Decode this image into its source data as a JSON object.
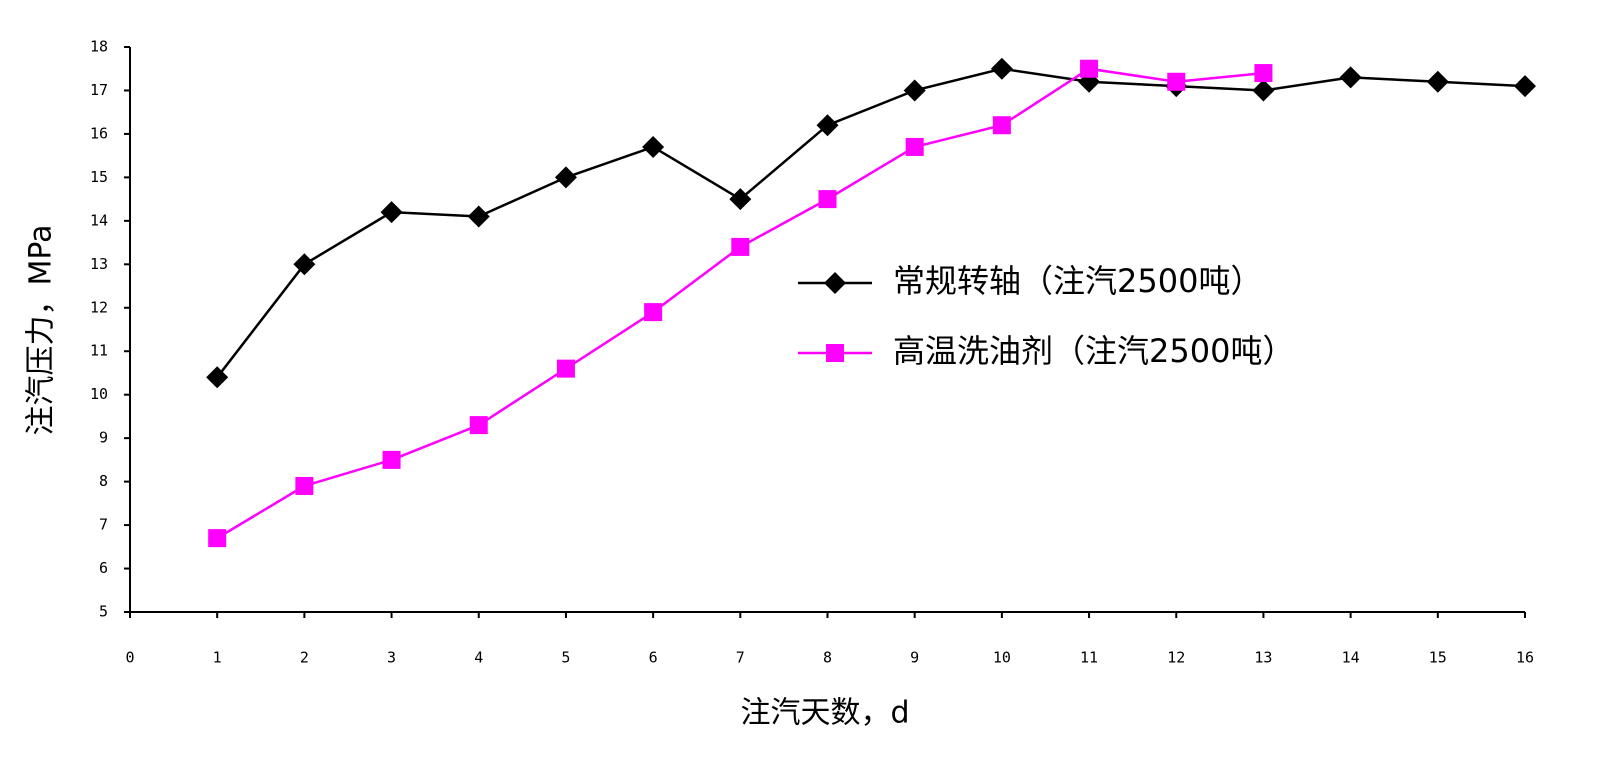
{
  "chart_data": {
    "type": "line",
    "x_label": "注汽天数，d",
    "y_label": "注汽压力，MPa",
    "x": [
      1,
      2,
      3,
      4,
      5,
      6,
      7,
      8,
      9,
      10,
      11,
      12,
      13,
      14,
      15,
      16
    ],
    "series": [
      {
        "name": "常规转轴（注汽2500吨）",
        "color": "#000000",
        "marker": "diamond",
        "values": [
          10.4,
          13.0,
          14.2,
          14.1,
          15.0,
          15.7,
          14.5,
          16.2,
          17.0,
          17.5,
          17.2,
          17.1,
          17.0,
          17.3,
          17.2,
          17.1
        ]
      },
      {
        "name": "高温洗油剂（注汽2500吨）",
        "color": "#ff00ff",
        "marker": "square",
        "values": [
          6.7,
          7.9,
          8.5,
          9.3,
          10.6,
          11.9,
          13.4,
          14.5,
          15.7,
          16.2,
          17.5,
          17.2,
          17.4,
          null,
          null,
          null
        ]
      }
    ],
    "xlim": [
      0,
      16
    ],
    "xticks": [
      0,
      1,
      2,
      3,
      4,
      5,
      6,
      7,
      8,
      9,
      10,
      11,
      12,
      13,
      14,
      15,
      16
    ],
    "ylim": [
      5,
      18
    ],
    "yticks": [
      5,
      6,
      7,
      8,
      9,
      10,
      11,
      12,
      13,
      14,
      15,
      16,
      17,
      18
    ],
    "grid": false
  }
}
